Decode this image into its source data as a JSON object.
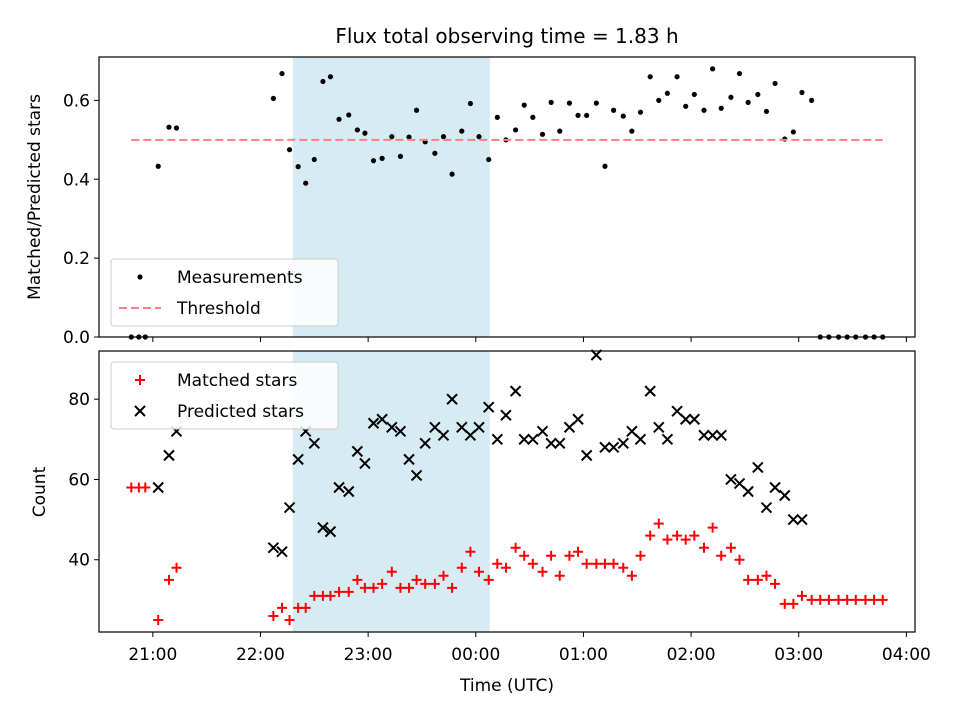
{
  "chart_data": {
    "title": "Flux total observing time = 1.83 h",
    "xlabel": "Time (UTC)",
    "x_units": "hours after 21:00 UTC on the x-axis (21:00 = 0, 04:00 = 7)",
    "xlim": [
      -0.5,
      7.08
    ],
    "x_ticks": [
      {
        "pos": 0,
        "label": "21:00"
      },
      {
        "pos": 1,
        "label": "22:00"
      },
      {
        "pos": 2,
        "label": "23:00"
      },
      {
        "pos": 3,
        "label": "00:00"
      },
      {
        "pos": 4,
        "label": "01:00"
      },
      {
        "pos": 5,
        "label": "02:00"
      },
      {
        "pos": 6,
        "label": "03:00"
      },
      {
        "pos": 7,
        "label": "04:00"
      }
    ],
    "highlight_span": {
      "x0": 1.3,
      "x1": 3.13,
      "color": "#add8e6"
    },
    "panels": [
      {
        "type": "scatter",
        "ylabel": "Matched/Predicted stars",
        "ylim": [
          0,
          0.71
        ],
        "y_ticks": [
          {
            "pos": 0.0,
            "label": "0.0"
          },
          {
            "pos": 0.2,
            "label": "0.2"
          },
          {
            "pos": 0.4,
            "label": "0.4"
          },
          {
            "pos": 0.6,
            "label": "0.6"
          }
        ],
        "legend_position": "bottom-left",
        "series": [
          {
            "name": "Measurements",
            "marker": "dot",
            "color": "#000000",
            "points": [
              [
                -0.2,
                0.0
              ],
              [
                -0.13,
                0.0
              ],
              [
                -0.07,
                0.0
              ],
              [
                0.05,
                0.433
              ],
              [
                0.15,
                0.532
              ],
              [
                0.22,
                0.53
              ],
              [
                1.12,
                0.605
              ],
              [
                1.2,
                0.668
              ],
              [
                1.27,
                0.475
              ],
              [
                1.35,
                0.432
              ],
              [
                1.42,
                0.39
              ],
              [
                1.5,
                0.45
              ],
              [
                1.58,
                0.648
              ],
              [
                1.65,
                0.66
              ],
              [
                1.73,
                0.552
              ],
              [
                1.82,
                0.563
              ],
              [
                1.9,
                0.525
              ],
              [
                1.97,
                0.517
              ],
              [
                2.05,
                0.447
              ],
              [
                2.13,
                0.453
              ],
              [
                2.22,
                0.508
              ],
              [
                2.3,
                0.458
              ],
              [
                2.38,
                0.507
              ],
              [
                2.45,
                0.575
              ],
              [
                2.53,
                0.495
              ],
              [
                2.62,
                0.466
              ],
              [
                2.7,
                0.508
              ],
              [
                2.78,
                0.413
              ],
              [
                2.87,
                0.522
              ],
              [
                2.95,
                0.592
              ],
              [
                3.03,
                0.508
              ],
              [
                3.12,
                0.45
              ],
              [
                3.2,
                0.557
              ],
              [
                3.28,
                0.5
              ],
              [
                3.37,
                0.525
              ],
              [
                3.45,
                0.588
              ],
              [
                3.53,
                0.557
              ],
              [
                3.62,
                0.514
              ],
              [
                3.7,
                0.595
              ],
              [
                3.78,
                0.522
              ],
              [
                3.87,
                0.593
              ],
              [
                3.95,
                0.562
              ],
              [
                4.03,
                0.562
              ],
              [
                4.12,
                0.593
              ],
              [
                4.2,
                0.433
              ],
              [
                4.28,
                0.575
              ],
              [
                4.37,
                0.56
              ],
              [
                4.45,
                0.522
              ],
              [
                4.53,
                0.57
              ],
              [
                4.62,
                0.66
              ],
              [
                4.7,
                0.6
              ],
              [
                4.78,
                0.618
              ],
              [
                4.87,
                0.66
              ],
              [
                4.95,
                0.585
              ],
              [
                5.03,
                0.615
              ],
              [
                5.12,
                0.575
              ],
              [
                5.2,
                0.68
              ],
              [
                5.28,
                0.58
              ],
              [
                5.37,
                0.608
              ],
              [
                5.45,
                0.668
              ],
              [
                5.53,
                0.595
              ],
              [
                5.62,
                0.615
              ],
              [
                5.7,
                0.572
              ],
              [
                5.78,
                0.643
              ],
              [
                5.87,
                0.502
              ],
              [
                5.95,
                0.52
              ],
              [
                6.03,
                0.62
              ],
              [
                6.12,
                0.6
              ],
              [
                6.2,
                0.0
              ],
              [
                6.28,
                0.0
              ],
              [
                6.37,
                0.0
              ],
              [
                6.45,
                0.0
              ],
              [
                6.53,
                0.0
              ],
              [
                6.62,
                0.0
              ],
              [
                6.7,
                0.0
              ],
              [
                6.78,
                0.0
              ]
            ]
          },
          {
            "name": "Threshold",
            "marker": "dashed-line",
            "color": "#ff7f7f",
            "points": [
              [
                -0.2,
                0.5
              ],
              [
                6.78,
                0.5
              ]
            ]
          }
        ]
      },
      {
        "type": "scatter",
        "ylabel": "Count",
        "ylim": [
          22,
          92
        ],
        "y_ticks": [
          {
            "pos": 40,
            "label": "40"
          },
          {
            "pos": 60,
            "label": "60"
          },
          {
            "pos": 80,
            "label": "80"
          }
        ],
        "legend_position": "top-left",
        "series": [
          {
            "name": "Matched stars",
            "marker": "plus",
            "color": "#ff0000",
            "points": [
              [
                -0.2,
                58
              ],
              [
                -0.13,
                58
              ],
              [
                -0.07,
                58
              ],
              [
                0.05,
                25
              ],
              [
                0.15,
                35
              ],
              [
                0.22,
                38
              ],
              [
                1.12,
                26
              ],
              [
                1.2,
                28
              ],
              [
                1.27,
                25
              ],
              [
                1.35,
                28
              ],
              [
                1.42,
                28
              ],
              [
                1.5,
                31
              ],
              [
                1.58,
                31
              ],
              [
                1.65,
                31
              ],
              [
                1.73,
                32
              ],
              [
                1.82,
                32
              ],
              [
                1.9,
                35
              ],
              [
                1.97,
                33
              ],
              [
                2.05,
                33
              ],
              [
                2.13,
                34
              ],
              [
                2.22,
                37
              ],
              [
                2.3,
                33
              ],
              [
                2.38,
                33
              ],
              [
                2.45,
                35
              ],
              [
                2.53,
                34
              ],
              [
                2.62,
                34
              ],
              [
                2.7,
                36
              ],
              [
                2.78,
                33
              ],
              [
                2.87,
                38
              ],
              [
                2.95,
                42
              ],
              [
                3.03,
                37
              ],
              [
                3.12,
                35
              ],
              [
                3.2,
                39
              ],
              [
                3.28,
                38
              ],
              [
                3.37,
                43
              ],
              [
                3.45,
                41
              ],
              [
                3.53,
                39
              ],
              [
                3.62,
                37
              ],
              [
                3.7,
                41
              ],
              [
                3.78,
                36
              ],
              [
                3.87,
                41
              ],
              [
                3.95,
                42
              ],
              [
                4.03,
                39
              ],
              [
                4.12,
                39
              ],
              [
                4.2,
                39
              ],
              [
                4.28,
                39
              ],
              [
                4.37,
                38
              ],
              [
                4.45,
                36
              ],
              [
                4.53,
                41
              ],
              [
                4.62,
                46
              ],
              [
                4.7,
                49
              ],
              [
                4.78,
                45
              ],
              [
                4.87,
                46
              ],
              [
                4.95,
                45
              ],
              [
                5.03,
                46
              ],
              [
                5.12,
                43
              ],
              [
                5.2,
                48
              ],
              [
                5.28,
                41
              ],
              [
                5.37,
                43
              ],
              [
                5.45,
                40
              ],
              [
                5.53,
                35
              ],
              [
                5.62,
                35
              ],
              [
                5.7,
                36
              ],
              [
                5.78,
                34
              ],
              [
                5.87,
                29
              ],
              [
                5.95,
                29
              ],
              [
                6.03,
                31
              ],
              [
                6.12,
                30
              ],
              [
                6.2,
                30
              ],
              [
                6.28,
                30
              ],
              [
                6.37,
                30
              ],
              [
                6.45,
                30
              ],
              [
                6.53,
                30
              ],
              [
                6.62,
                30
              ],
              [
                6.7,
                30
              ],
              [
                6.78,
                30
              ]
            ]
          },
          {
            "name": "Predicted stars",
            "marker": "x",
            "color": "#000000",
            "points": [
              [
                0.05,
                58
              ],
              [
                0.15,
                66
              ],
              [
                0.22,
                72
              ],
              [
                1.12,
                43
              ],
              [
                1.2,
                42
              ],
              [
                1.27,
                53
              ],
              [
                1.35,
                65
              ],
              [
                1.42,
                72
              ],
              [
                1.5,
                69
              ],
              [
                1.58,
                48
              ],
              [
                1.65,
                47
              ],
              [
                1.73,
                58
              ],
              [
                1.82,
                57
              ],
              [
                1.9,
                67
              ],
              [
                1.97,
                64
              ],
              [
                2.05,
                74
              ],
              [
                2.13,
                75
              ],
              [
                2.22,
                73
              ],
              [
                2.3,
                72
              ],
              [
                2.38,
                65
              ],
              [
                2.45,
                61
              ],
              [
                2.53,
                69
              ],
              [
                2.62,
                73
              ],
              [
                2.7,
                71
              ],
              [
                2.78,
                80
              ],
              [
                2.87,
                73
              ],
              [
                2.95,
                71
              ],
              [
                3.03,
                73
              ],
              [
                3.12,
                78
              ],
              [
                3.2,
                70
              ],
              [
                3.28,
                76
              ],
              [
                3.37,
                82
              ],
              [
                3.45,
                70
              ],
              [
                3.53,
                70
              ],
              [
                3.62,
                72
              ],
              [
                3.7,
                69
              ],
              [
                3.78,
                69
              ],
              [
                3.87,
                73
              ],
              [
                3.95,
                75
              ],
              [
                4.03,
                66
              ],
              [
                4.12,
                91
              ],
              [
                4.2,
                68
              ],
              [
                4.28,
                68
              ],
              [
                4.37,
                69
              ],
              [
                4.45,
                72
              ],
              [
                4.53,
                70
              ],
              [
                4.62,
                82
              ],
              [
                4.7,
                73
              ],
              [
                4.78,
                70
              ],
              [
                4.87,
                77
              ],
              [
                4.95,
                75
              ],
              [
                5.03,
                75
              ],
              [
                5.12,
                71
              ],
              [
                5.2,
                71
              ],
              [
                5.28,
                71
              ],
              [
                5.37,
                60
              ],
              [
                5.45,
                59
              ],
              [
                5.53,
                57
              ],
              [
                5.62,
                63
              ],
              [
                5.7,
                53
              ],
              [
                5.78,
                58
              ],
              [
                5.87,
                56
              ],
              [
                5.95,
                50
              ],
              [
                6.03,
                50
              ]
            ]
          }
        ]
      }
    ]
  }
}
